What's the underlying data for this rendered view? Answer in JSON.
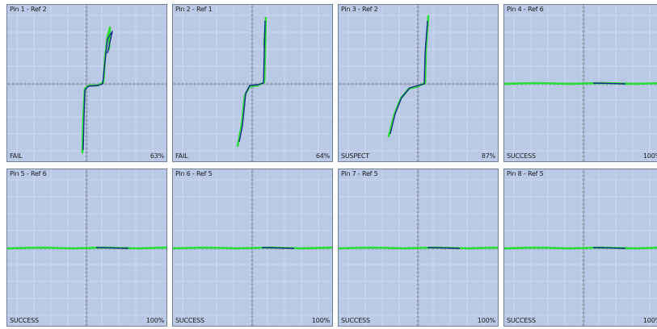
{
  "colors": {
    "panel_bg": "#b9c9e6",
    "grid": "#cdd9ee",
    "axis": "#8a96a8",
    "reference_trace": "#1b2a8f",
    "measured_trace": "#22e02a"
  },
  "panels": [
    {
      "title": "Pin 1 - Ref 2",
      "status": "FAIL",
      "percent": "63%",
      "curve": "fail1"
    },
    {
      "title": "Pin 2 - Ref 1",
      "status": "FAIL",
      "percent": "64%",
      "curve": "fail2"
    },
    {
      "title": "Pin 3 - Ref 2",
      "status": "SUSPECT",
      "percent": "87%",
      "curve": "suspect"
    },
    {
      "title": "Pin 4 - Ref 6",
      "status": "SUCCESS",
      "percent": "100%",
      "curve": "flat"
    },
    {
      "title": "Pin 5 - Ref 6",
      "status": "SUCCESS",
      "percent": "100%",
      "curve": "flat"
    },
    {
      "title": "Pin 6 - Ref 5",
      "status": "SUCCESS",
      "percent": "100%",
      "curve": "flat"
    },
    {
      "title": "Pin 7 - Ref 5",
      "status": "SUCCESS",
      "percent": "100%",
      "curve": "flat"
    },
    {
      "title": "Pin 8 - Ref 5",
      "status": "SUCCESS",
      "percent": "100%",
      "curve": "flat"
    }
  ]
}
